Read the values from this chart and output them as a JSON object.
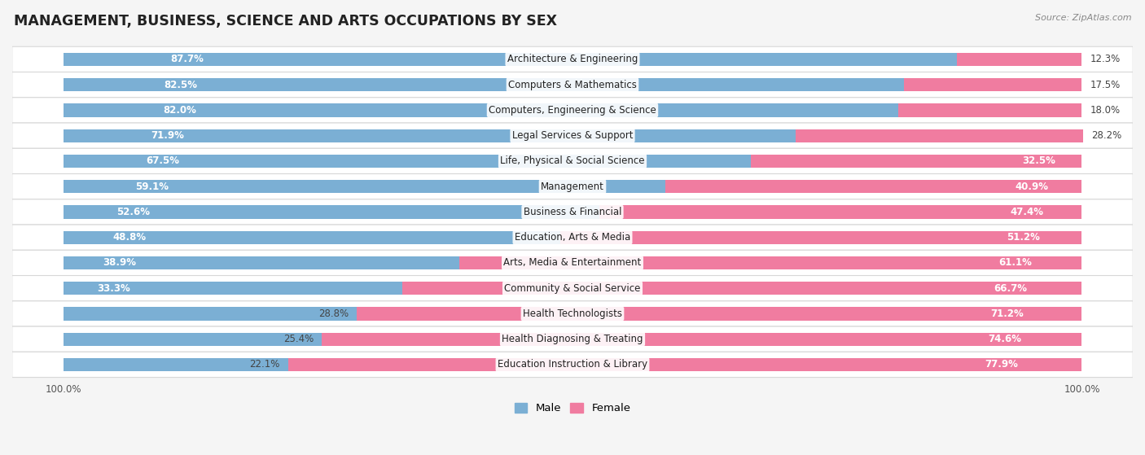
{
  "title": "MANAGEMENT, BUSINESS, SCIENCE AND ARTS OCCUPATIONS BY SEX",
  "source": "Source: ZipAtlas.com",
  "categories": [
    "Architecture & Engineering",
    "Computers & Mathematics",
    "Computers, Engineering & Science",
    "Legal Services & Support",
    "Life, Physical & Social Science",
    "Management",
    "Business & Financial",
    "Education, Arts & Media",
    "Arts, Media & Entertainment",
    "Community & Social Service",
    "Health Technologists",
    "Health Diagnosing & Treating",
    "Education Instruction & Library"
  ],
  "male_pct": [
    87.7,
    82.5,
    82.0,
    71.9,
    67.5,
    59.1,
    52.6,
    48.8,
    38.9,
    33.3,
    28.8,
    25.4,
    22.1
  ],
  "female_pct": [
    12.3,
    17.5,
    18.0,
    28.2,
    32.5,
    40.9,
    47.4,
    51.2,
    61.1,
    66.7,
    71.2,
    74.6,
    77.9
  ],
  "male_color": "#7bafd4",
  "female_color": "#f07ca0",
  "background_color": "#f5f5f5",
  "row_light_color": "#ffffff",
  "row_dark_color": "#ebebeb",
  "bar_height": 0.52,
  "title_fontsize": 12.5,
  "label_fontsize": 8.5,
  "tick_fontsize": 8.5,
  "legend_fontsize": 9.5,
  "male_label_inside_threshold": 55,
  "female_label_inside_threshold": 55
}
